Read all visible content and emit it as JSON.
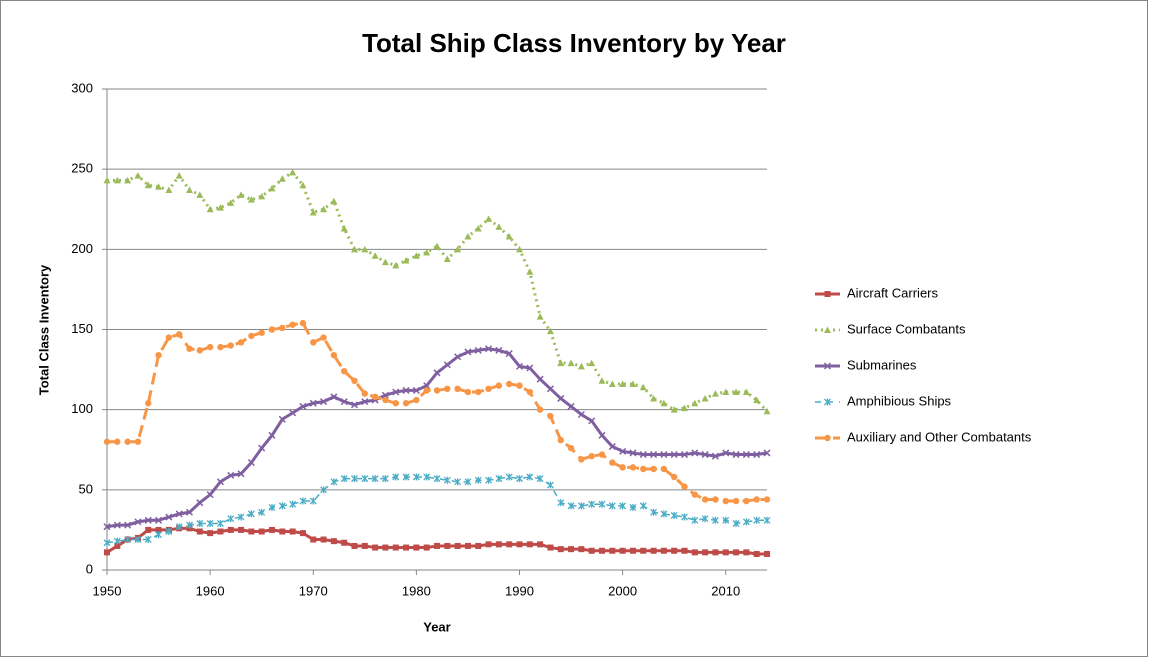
{
  "chart_data": {
    "type": "line",
    "title": "Total Ship Class Inventory by Year",
    "x_label": "Year",
    "y_label": "Total Class Inventory",
    "x": [
      1950,
      1951,
      1952,
      1953,
      1954,
      1955,
      1956,
      1957,
      1958,
      1959,
      1960,
      1961,
      1962,
      1963,
      1964,
      1965,
      1966,
      1967,
      1968,
      1969,
      1970,
      1971,
      1972,
      1973,
      1974,
      1975,
      1976,
      1977,
      1978,
      1979,
      1980,
      1981,
      1982,
      1983,
      1984,
      1985,
      1986,
      1987,
      1988,
      1989,
      1990,
      1991,
      1992,
      1993,
      1994,
      1995,
      1996,
      1997,
      1998,
      1999,
      2000,
      2001,
      2002,
      2003,
      2004,
      2005,
      2006,
      2007,
      2008,
      2009,
      2010,
      2011,
      2012,
      2013,
      2014
    ],
    "series": [
      {
        "name": "Aircraft Carriers",
        "color": "#be4b48",
        "values": [
          11,
          15,
          19,
          20,
          25,
          25,
          25,
          26,
          26,
          24,
          23,
          24,
          25,
          25,
          24,
          24,
          25,
          24,
          24,
          23,
          19,
          19,
          18,
          17,
          15,
          15,
          14,
          14,
          14,
          14,
          14,
          14,
          15,
          15,
          15,
          15,
          15,
          16,
          16,
          16,
          16,
          16,
          16,
          14,
          13,
          13,
          13,
          12,
          12,
          12,
          12,
          12,
          12,
          12,
          12,
          12,
          12,
          11,
          11,
          11,
          11,
          11,
          11,
          10,
          10
        ]
      },
      {
        "name": "Surface Combatants",
        "color": "#9bbb59",
        "values": [
          243,
          243,
          243,
          246,
          240,
          239,
          237,
          246,
          237,
          234,
          225,
          226,
          229,
          234,
          231,
          233,
          238,
          244,
          248,
          240,
          223,
          225,
          230,
          213,
          200,
          200,
          196,
          192,
          190,
          193,
          196,
          198,
          202,
          194,
          200,
          208,
          213,
          219,
          214,
          208,
          200,
          186,
          158,
          149,
          129,
          129,
          127,
          129,
          118,
          116,
          116,
          116,
          114,
          107,
          104,
          100,
          101,
          104,
          107,
          110,
          111,
          111,
          111,
          106,
          99
        ]
      },
      {
        "name": "Submarines",
        "color": "#7f5fa0",
        "values": [
          27,
          28,
          28,
          30,
          31,
          31,
          33,
          35,
          36,
          42,
          47,
          55,
          59,
          60,
          67,
          76,
          84,
          94,
          98,
          102,
          104,
          105,
          108,
          105,
          103,
          105,
          106,
          109,
          111,
          112,
          112,
          115,
          123,
          128,
          133,
          136,
          137,
          138,
          137,
          135,
          127,
          126,
          119,
          113,
          107,
          102,
          97,
          93,
          84,
          77,
          74,
          73,
          72,
          72,
          72,
          72,
          72,
          73,
          72,
          71,
          73,
          72,
          72,
          72,
          73
        ]
      },
      {
        "name": "Amphibious Ships",
        "color": "#4bacc6",
        "values": [
          17,
          18,
          19,
          19,
          19,
          22,
          24,
          27,
          28,
          29,
          29,
          29,
          32,
          33,
          35,
          36,
          39,
          40,
          41,
          43,
          43,
          50,
          55,
          57,
          57,
          57,
          57,
          57,
          58,
          58,
          58,
          58,
          57,
          56,
          55,
          55,
          56,
          56,
          57,
          58,
          57,
          58,
          57,
          53,
          42,
          40,
          40,
          41,
          41,
          40,
          40,
          39,
          40,
          36,
          35,
          34,
          33,
          31,
          32,
          31,
          31,
          29,
          30,
          31,
          31
        ]
      },
      {
        "name": "Auxiliary and Other Combatants",
        "color": "#f79646",
        "values": [
          80,
          80,
          80,
          80,
          104,
          134,
          145,
          147,
          138,
          137,
          139,
          139,
          140,
          142,
          146,
          148,
          150,
          151,
          153,
          154,
          142,
          145,
          134,
          124,
          118,
          110,
          108,
          106,
          104,
          104,
          106,
          112,
          112,
          113,
          113,
          111,
          111,
          113,
          115,
          116,
          115,
          111,
          100,
          96,
          81,
          76,
          69,
          71,
          72,
          67,
          64,
          64,
          63,
          63,
          63,
          58,
          52,
          47,
          44,
          44,
          43,
          43,
          43,
          44,
          44
        ]
      }
    ],
    "xlim": [
      1950,
      2014
    ],
    "xticks": [
      1950,
      1960,
      1970,
      1980,
      1990,
      2000,
      2010
    ],
    "ylim": [
      0,
      300
    ],
    "yticks": [
      0,
      50,
      100,
      150,
      200,
      250,
      300
    ],
    "grid": true,
    "legend": "right"
  }
}
